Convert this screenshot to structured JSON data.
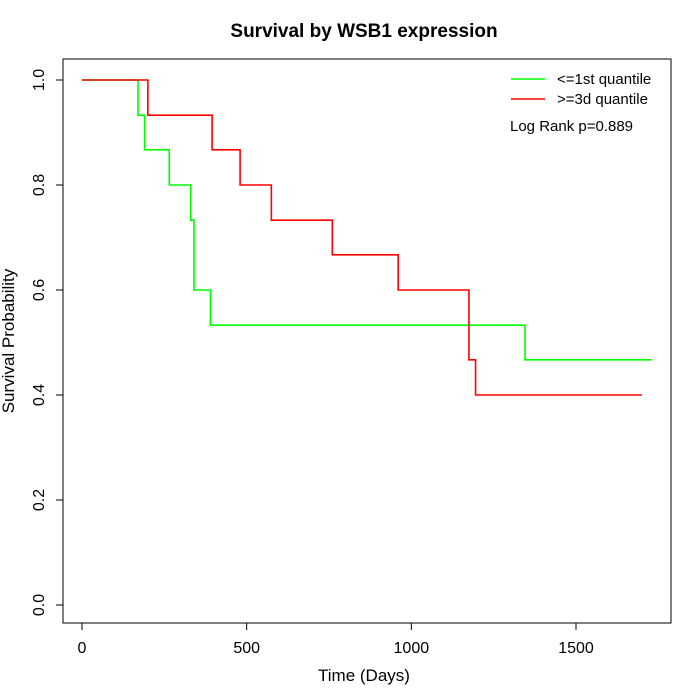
{
  "chart_data": {
    "type": "line",
    "title": "Survival by WSB1 expression",
    "xlabel": "Time (Days)",
    "ylabel": "Survival Probability",
    "xlim": [
      0,
      1750
    ],
    "ylim": [
      0,
      1.0
    ],
    "x_ticks": [
      0,
      500,
      1000,
      1500
    ],
    "y_ticks": [
      "0.0",
      "0.2",
      "0.4",
      "0.6",
      "0.8",
      "1.0"
    ],
    "grid": false,
    "legend_position": "top-right",
    "annotation": "Log Rank p=0.889",
    "series": [
      {
        "name": "<=1st quantile",
        "color": "#00ff00",
        "step_x": [
          0,
          170,
          190,
          265,
          330,
          340,
          390,
          1345,
          1730
        ],
        "step_y": [
          1.0,
          0.933,
          0.867,
          0.8,
          0.733,
          0.6,
          0.533,
          0.467,
          0.467
        ]
      },
      {
        "name": ">=3d quantile",
        "color": "#ff0000",
        "step_x": [
          0,
          200,
          395,
          480,
          575,
          760,
          960,
          1175,
          1195,
          1700
        ],
        "step_y": [
          1.0,
          0.933,
          0.867,
          0.8,
          0.733,
          0.667,
          0.6,
          0.467,
          0.4,
          0.4
        ]
      }
    ]
  }
}
